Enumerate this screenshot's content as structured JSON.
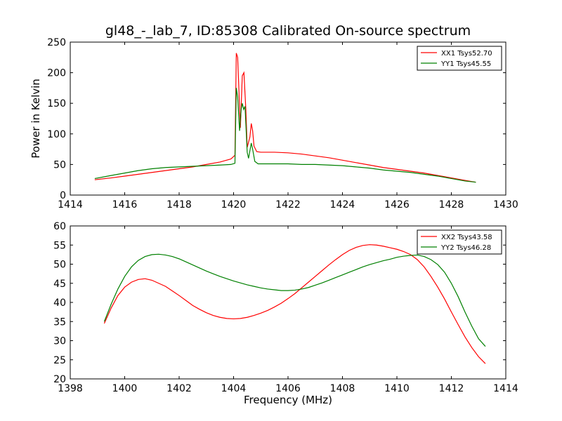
{
  "figure": {
    "title": "gl48_-_lab_7, ID:85308 Calibrated On-source spectrum",
    "ylabel": "Power in Kelvin",
    "xlabel": "Frequency (MHz)"
  },
  "chart_data": [
    {
      "type": "line",
      "xlim": [
        1414,
        1430
      ],
      "ylim": [
        0,
        250
      ],
      "xticks": [
        1414,
        1416,
        1418,
        1420,
        1422,
        1424,
        1426,
        1428,
        1430
      ],
      "yticks": [
        0,
        50,
        100,
        150,
        200,
        250
      ],
      "grid": false,
      "legend": "top-right",
      "series": [
        {
          "name": "XX1 Tsys52.70",
          "color": "#ff0000",
          "points": [
            [
              1414.9,
              25
            ],
            [
              1415.5,
              28
            ],
            [
              1416,
              31
            ],
            [
              1416.5,
              34
            ],
            [
              1417,
              37
            ],
            [
              1417.5,
              40
            ],
            [
              1418,
              43
            ],
            [
              1418.5,
              46
            ],
            [
              1419,
              50
            ],
            [
              1419.5,
              54
            ],
            [
              1419.9,
              59
            ],
            [
              1420.05,
              65
            ],
            [
              1420.1,
              232
            ],
            [
              1420.15,
              225
            ],
            [
              1420.25,
              110
            ],
            [
              1420.32,
              195
            ],
            [
              1420.38,
              200
            ],
            [
              1420.45,
              140
            ],
            [
              1420.5,
              78
            ],
            [
              1420.6,
              95
            ],
            [
              1420.65,
              117
            ],
            [
              1420.7,
              105
            ],
            [
              1420.75,
              80
            ],
            [
              1420.85,
              71
            ],
            [
              1421,
              70
            ],
            [
              1421.5,
              70
            ],
            [
              1422,
              69
            ],
            [
              1422.5,
              67
            ],
            [
              1423,
              64
            ],
            [
              1423.5,
              61
            ],
            [
              1424,
              57
            ],
            [
              1424.5,
              53
            ],
            [
              1425,
              49
            ],
            [
              1425.5,
              45
            ],
            [
              1426,
              42
            ],
            [
              1426.5,
              39
            ],
            [
              1427,
              36
            ],
            [
              1427.5,
              32
            ],
            [
              1428,
              28
            ],
            [
              1428.5,
              24
            ],
            [
              1428.9,
              21
            ]
          ]
        },
        {
          "name": "YY1 Tsys45.55",
          "color": "#008000",
          "points": [
            [
              1414.9,
              27
            ],
            [
              1415.5,
              32
            ],
            [
              1416,
              36
            ],
            [
              1416.5,
              40
            ],
            [
              1417,
              43
            ],
            [
              1417.5,
              45
            ],
            [
              1418,
              46
            ],
            [
              1418.5,
              47
            ],
            [
              1419,
              48
            ],
            [
              1419.5,
              49
            ],
            [
              1419.9,
              50
            ],
            [
              1420.05,
              52
            ],
            [
              1420.1,
              175
            ],
            [
              1420.15,
              160
            ],
            [
              1420.22,
              105
            ],
            [
              1420.28,
              140
            ],
            [
              1420.32,
              150
            ],
            [
              1420.37,
              140
            ],
            [
              1420.42,
              145
            ],
            [
              1420.5,
              70
            ],
            [
              1420.55,
              60
            ],
            [
              1420.65,
              85
            ],
            [
              1420.7,
              75
            ],
            [
              1420.78,
              55
            ],
            [
              1420.9,
              51
            ],
            [
              1421.5,
              51
            ],
            [
              1422,
              51
            ],
            [
              1422.5,
              50
            ],
            [
              1423,
              50
            ],
            [
              1423.5,
              49
            ],
            [
              1424,
              48
            ],
            [
              1424.5,
              46
            ],
            [
              1425,
              44
            ],
            [
              1425.5,
              41
            ],
            [
              1426,
              39
            ],
            [
              1426.5,
              37
            ],
            [
              1427,
              34
            ],
            [
              1427.5,
              31
            ],
            [
              1428,
              27
            ],
            [
              1428.5,
              23
            ],
            [
              1428.9,
              21
            ]
          ]
        }
      ]
    },
    {
      "type": "line",
      "xlim": [
        1398,
        1414
      ],
      "ylim": [
        20,
        60
      ],
      "xticks": [
        1398,
        1400,
        1402,
        1404,
        1406,
        1408,
        1410,
        1412,
        1414
      ],
      "yticks": [
        20,
        25,
        30,
        35,
        40,
        45,
        50,
        55,
        60
      ],
      "grid": false,
      "legend": "top-right",
      "series": [
        {
          "name": "XX2 Tsys43.58",
          "color": "#ff0000",
          "points": [
            [
              1399.25,
              34.5
            ],
            [
              1399.5,
              38.5
            ],
            [
              1399.75,
              41.8
            ],
            [
              1400,
              44
            ],
            [
              1400.25,
              45.3
            ],
            [
              1400.5,
              46
            ],
            [
              1400.75,
              46.2
            ],
            [
              1401,
              45.8
            ],
            [
              1401.25,
              45
            ],
            [
              1401.5,
              44.2
            ],
            [
              1401.75,
              43
            ],
            [
              1402,
              41.8
            ],
            [
              1402.25,
              40.5
            ],
            [
              1402.5,
              39.2
            ],
            [
              1402.75,
              38.2
            ],
            [
              1403,
              37.3
            ],
            [
              1403.25,
              36.6
            ],
            [
              1403.5,
              36.1
            ],
            [
              1403.75,
              35.8
            ],
            [
              1404,
              35.7
            ],
            [
              1404.25,
              35.8
            ],
            [
              1404.5,
              36.1
            ],
            [
              1404.75,
              36.6
            ],
            [
              1405,
              37.2
            ],
            [
              1405.25,
              37.9
            ],
            [
              1405.5,
              38.8
            ],
            [
              1405.75,
              39.8
            ],
            [
              1406,
              41
            ],
            [
              1406.25,
              42.3
            ],
            [
              1406.5,
              43.8
            ],
            [
              1406.75,
              45.3
            ],
            [
              1407,
              46.8
            ],
            [
              1407.25,
              48.3
            ],
            [
              1407.5,
              49.8
            ],
            [
              1407.75,
              51.2
            ],
            [
              1408,
              52.5
            ],
            [
              1408.25,
              53.6
            ],
            [
              1408.5,
              54.4
            ],
            [
              1408.75,
              54.9
            ],
            [
              1409,
              55.1
            ],
            [
              1409.25,
              55
            ],
            [
              1409.5,
              54.7
            ],
            [
              1409.75,
              54.3
            ],
            [
              1410,
              53.9
            ],
            [
              1410.25,
              53.3
            ],
            [
              1410.5,
              52.5
            ],
            [
              1410.75,
              51.2
            ],
            [
              1411,
              49.3
            ],
            [
              1411.25,
              46.8
            ],
            [
              1411.5,
              44
            ],
            [
              1411.75,
              40.9
            ],
            [
              1412,
              37.5
            ],
            [
              1412.25,
              34.2
            ],
            [
              1412.5,
              31
            ],
            [
              1412.75,
              28.2
            ],
            [
              1413,
              25.8
            ],
            [
              1413.25,
              24
            ]
          ]
        },
        {
          "name": "YY2 Tsys46.28",
          "color": "#008000",
          "points": [
            [
              1399.25,
              35
            ],
            [
              1399.5,
              39.5
            ],
            [
              1399.75,
              43.5
            ],
            [
              1400,
              46.8
            ],
            [
              1400.25,
              49.3
            ],
            [
              1400.5,
              51
            ],
            [
              1400.75,
              52
            ],
            [
              1401,
              52.5
            ],
            [
              1401.25,
              52.6
            ],
            [
              1401.5,
              52.4
            ],
            [
              1401.75,
              52
            ],
            [
              1402,
              51.4
            ],
            [
              1402.25,
              50.6
            ],
            [
              1402.5,
              49.8
            ],
            [
              1402.75,
              49
            ],
            [
              1403,
              48.2
            ],
            [
              1403.25,
              47.5
            ],
            [
              1403.5,
              46.8
            ],
            [
              1403.75,
              46.2
            ],
            [
              1404,
              45.6
            ],
            [
              1404.25,
              45.1
            ],
            [
              1404.5,
              44.6
            ],
            [
              1404.75,
              44.2
            ],
            [
              1405,
              43.8
            ],
            [
              1405.25,
              43.5
            ],
            [
              1405.5,
              43.3
            ],
            [
              1405.75,
              43.1
            ],
            [
              1406,
              43.1
            ],
            [
              1406.25,
              43.2
            ],
            [
              1406.5,
              43.5
            ],
            [
              1406.75,
              43.9
            ],
            [
              1407,
              44.5
            ],
            [
              1407.25,
              45.1
            ],
            [
              1407.5,
              45.8
            ],
            [
              1407.75,
              46.5
            ],
            [
              1408,
              47.2
            ],
            [
              1408.25,
              47.9
            ],
            [
              1408.5,
              48.6
            ],
            [
              1408.75,
              49.3
            ],
            [
              1409,
              49.9
            ],
            [
              1409.25,
              50.4
            ],
            [
              1409.5,
              50.9
            ],
            [
              1409.75,
              51.3
            ],
            [
              1410,
              51.8
            ],
            [
              1410.25,
              52.1
            ],
            [
              1410.5,
              52.3
            ],
            [
              1410.75,
              52.4
            ],
            [
              1411,
              52
            ],
            [
              1411.25,
              51.2
            ],
            [
              1411.5,
              49.9
            ],
            [
              1411.75,
              47.9
            ],
            [
              1412,
              45
            ],
            [
              1412.25,
              41.5
            ],
            [
              1412.5,
              37.5
            ],
            [
              1412.75,
              33.8
            ],
            [
              1413,
              30.5
            ],
            [
              1413.25,
              28.5
            ]
          ]
        }
      ]
    }
  ]
}
